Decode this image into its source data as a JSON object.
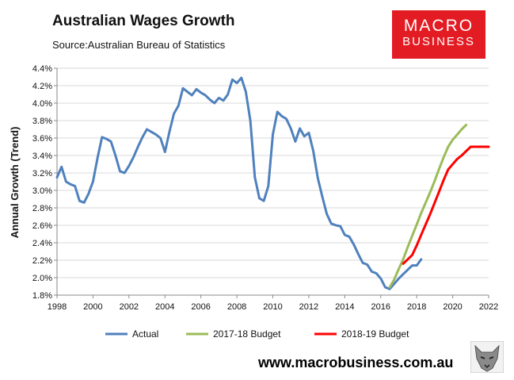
{
  "title": "Australian Wages Growth",
  "source": "Source:Australian Bureau of Statistics",
  "logo": {
    "line1": "MACRO",
    "line2": "BUSINESS"
  },
  "footer_url": "www.macrobusiness.com.au",
  "colors": {
    "actual": "#4f81bd",
    "budget_2017": "#9bbb59",
    "budget_2018": "#ff0000",
    "logo_bg": "#e31b23"
  },
  "chart_data": {
    "type": "line",
    "ylabel": "Annual Growth (Trend)",
    "xlabel": "",
    "xlim": [
      1998,
      2022
    ],
    "ylim": [
      1.8,
      4.4
    ],
    "x_ticks": [
      1998,
      2000,
      2002,
      2004,
      2006,
      2008,
      2010,
      2012,
      2014,
      2016,
      2018,
      2020,
      2022
    ],
    "y_ticks": [
      "1.8%",
      "2.0%",
      "2.2%",
      "2.4%",
      "2.6%",
      "2.8%",
      "3.0%",
      "3.2%",
      "3.4%",
      "3.6%",
      "3.8%",
      "4.0%",
      "4.2%",
      "4.4%"
    ],
    "legend_position": "bottom",
    "series": [
      {
        "name": "Actual",
        "color": "#4f81bd",
        "points": [
          [
            1998.0,
            3.15
          ],
          [
            1998.25,
            3.27
          ],
          [
            1998.5,
            3.1
          ],
          [
            1998.75,
            3.07
          ],
          [
            1999.0,
            3.05
          ],
          [
            1999.25,
            2.88
          ],
          [
            1999.5,
            2.86
          ],
          [
            1999.75,
            2.96
          ],
          [
            2000.0,
            3.1
          ],
          [
            2000.25,
            3.37
          ],
          [
            2000.5,
            3.61
          ],
          [
            2000.75,
            3.59
          ],
          [
            2001.0,
            3.56
          ],
          [
            2001.25,
            3.4
          ],
          [
            2001.5,
            3.22
          ],
          [
            2001.75,
            3.2
          ],
          [
            2002.0,
            3.28
          ],
          [
            2002.25,
            3.38
          ],
          [
            2002.5,
            3.5
          ],
          [
            2002.75,
            3.61
          ],
          [
            2003.0,
            3.7
          ],
          [
            2003.25,
            3.67
          ],
          [
            2003.5,
            3.64
          ],
          [
            2003.75,
            3.6
          ],
          [
            2004.0,
            3.44
          ],
          [
            2004.25,
            3.67
          ],
          [
            2004.5,
            3.88
          ],
          [
            2004.75,
            3.97
          ],
          [
            2005.0,
            4.17
          ],
          [
            2005.25,
            4.13
          ],
          [
            2005.5,
            4.09
          ],
          [
            2005.75,
            4.16
          ],
          [
            2006.0,
            4.12
          ],
          [
            2006.25,
            4.09
          ],
          [
            2006.5,
            4.04
          ],
          [
            2006.75,
            4.0
          ],
          [
            2007.0,
            4.06
          ],
          [
            2007.25,
            4.03
          ],
          [
            2007.5,
            4.1
          ],
          [
            2007.75,
            4.27
          ],
          [
            2008.0,
            4.23
          ],
          [
            2008.25,
            4.29
          ],
          [
            2008.5,
            4.13
          ],
          [
            2008.75,
            3.8
          ],
          [
            2009.0,
            3.15
          ],
          [
            2009.25,
            2.91
          ],
          [
            2009.5,
            2.88
          ],
          [
            2009.75,
            3.05
          ],
          [
            2010.0,
            3.64
          ],
          [
            2010.25,
            3.9
          ],
          [
            2010.5,
            3.85
          ],
          [
            2010.75,
            3.82
          ],
          [
            2011.0,
            3.71
          ],
          [
            2011.25,
            3.56
          ],
          [
            2011.5,
            3.71
          ],
          [
            2011.75,
            3.62
          ],
          [
            2012.0,
            3.66
          ],
          [
            2012.25,
            3.45
          ],
          [
            2012.5,
            3.14
          ],
          [
            2012.75,
            2.93
          ],
          [
            2013.0,
            2.73
          ],
          [
            2013.25,
            2.62
          ],
          [
            2013.5,
            2.6
          ],
          [
            2013.75,
            2.59
          ],
          [
            2014.0,
            2.49
          ],
          [
            2014.25,
            2.47
          ],
          [
            2014.5,
            2.38
          ],
          [
            2014.75,
            2.27
          ],
          [
            2015.0,
            2.17
          ],
          [
            2015.25,
            2.15
          ],
          [
            2015.5,
            2.07
          ],
          [
            2015.75,
            2.05
          ],
          [
            2016.0,
            1.99
          ],
          [
            2016.25,
            1.89
          ],
          [
            2016.5,
            1.87
          ],
          [
            2016.75,
            1.93
          ],
          [
            2017.0,
            1.99
          ],
          [
            2017.25,
            2.04
          ],
          [
            2017.5,
            2.09
          ],
          [
            2017.75,
            2.14
          ],
          [
            2018.0,
            2.14
          ],
          [
            2018.25,
            2.21
          ]
        ]
      },
      {
        "name": "2017-18 Budget",
        "color": "#9bbb59",
        "points": [
          [
            2016.5,
            1.89
          ],
          [
            2016.75,
            1.98
          ],
          [
            2017.0,
            2.1
          ],
          [
            2017.25,
            2.21
          ],
          [
            2017.5,
            2.35
          ],
          [
            2017.75,
            2.48
          ],
          [
            2018.0,
            2.61
          ],
          [
            2018.25,
            2.74
          ],
          [
            2018.5,
            2.86
          ],
          [
            2018.75,
            2.98
          ],
          [
            2019.0,
            3.11
          ],
          [
            2019.25,
            3.25
          ],
          [
            2019.5,
            3.38
          ],
          [
            2019.75,
            3.5
          ],
          [
            2020.0,
            3.58
          ],
          [
            2020.25,
            3.64
          ],
          [
            2020.5,
            3.7
          ],
          [
            2020.75,
            3.75
          ]
        ]
      },
      {
        "name": "2018-19 Budget",
        "color": "#ff0000",
        "points": [
          [
            2017.25,
            2.16
          ],
          [
            2017.5,
            2.21
          ],
          [
            2017.75,
            2.26
          ],
          [
            2018.0,
            2.37
          ],
          [
            2018.25,
            2.49
          ],
          [
            2018.5,
            2.61
          ],
          [
            2018.75,
            2.73
          ],
          [
            2019.0,
            2.86
          ],
          [
            2019.25,
            2.99
          ],
          [
            2019.5,
            3.12
          ],
          [
            2019.75,
            3.24
          ],
          [
            2020.0,
            3.3
          ],
          [
            2020.25,
            3.36
          ],
          [
            2020.5,
            3.4
          ],
          [
            2020.75,
            3.45
          ],
          [
            2021.0,
            3.5
          ],
          [
            2021.25,
            3.5
          ],
          [
            2021.5,
            3.5
          ],
          [
            2021.75,
            3.5
          ],
          [
            2022.0,
            3.5
          ]
        ]
      }
    ]
  }
}
